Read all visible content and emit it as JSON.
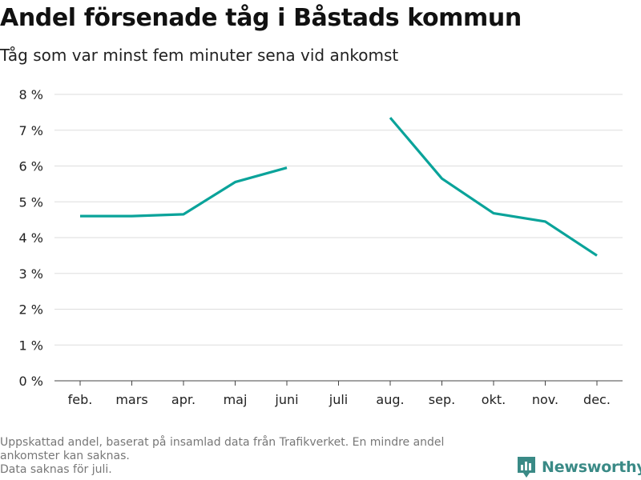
{
  "title": "Andel försenade tåg i Båstads kommun",
  "subtitle": "Tåg som var minst fem minuter sena vid ankomst",
  "notes": [
    "Uppskattad andel, baserat på insamlad data från Trafikverket. En mindre andel",
    "ankomster kan saknas.",
    "Data saknas för juli."
  ],
  "brand": {
    "name": "Newsworthy",
    "icon": "newsworthy-logo-icon",
    "color": "#3a8a86"
  },
  "colors": {
    "line": "#0aa39a",
    "grid": "#dddddd",
    "axis": "#444444"
  },
  "chart_data": {
    "type": "line",
    "categories": [
      "feb.",
      "mars",
      "apr.",
      "maj",
      "juni",
      "juli",
      "aug.",
      "sep.",
      "okt.",
      "nov.",
      "dec."
    ],
    "series": [
      {
        "values": [
          4.6,
          4.6,
          4.65,
          5.55,
          5.95,
          null,
          7.35,
          5.65,
          4.68,
          4.45,
          3.5
        ]
      }
    ],
    "ylim": [
      0,
      8
    ],
    "yticks": [
      0,
      1,
      2,
      3,
      4,
      5,
      6,
      7,
      8
    ],
    "ytick_labels": [
      "0 %",
      "1 %",
      "2 %",
      "3 %",
      "4 %",
      "5 %",
      "6 %",
      "7 %",
      "8 %"
    ],
    "grid": true,
    "xlabel": "",
    "ylabel": "",
    "legend": "none"
  }
}
